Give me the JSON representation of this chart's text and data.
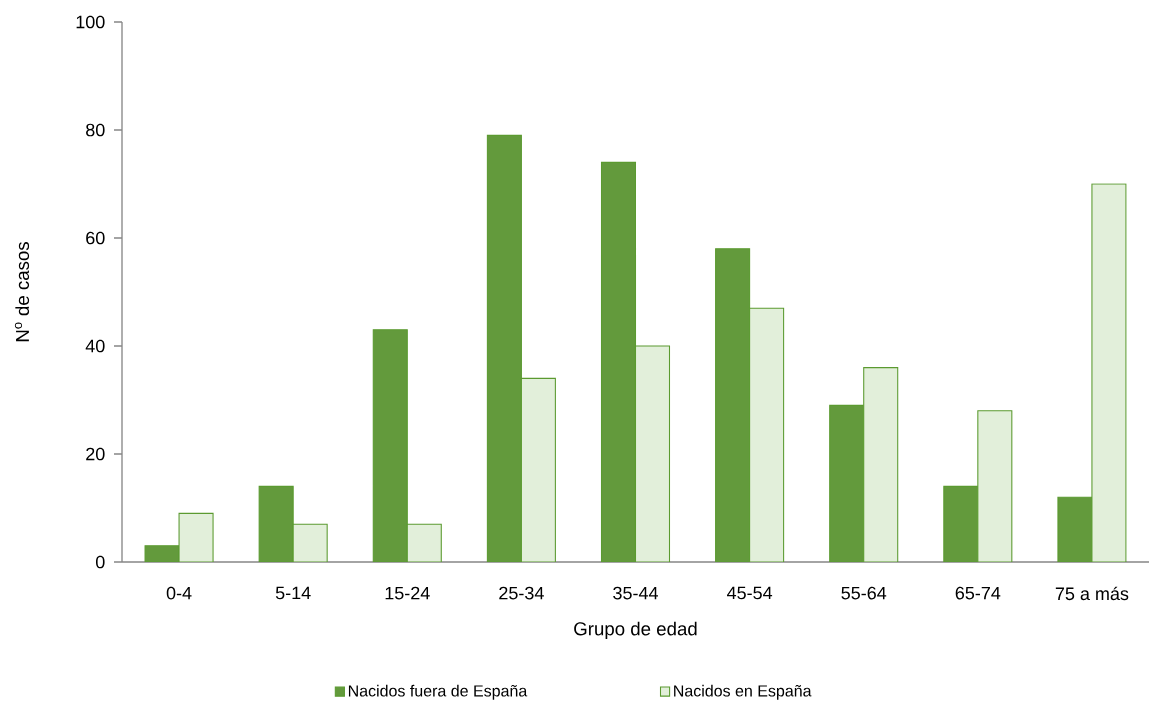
{
  "chart_data": {
    "type": "bar",
    "xlabel": "Grupo de edad",
    "ylabel": "N$^{o}$ de casos",
    "categories": [
      "0-4",
      "5-14",
      "15-24",
      "25-34",
      "35-44",
      "45-54",
      "55-64",
      "65-74",
      "75 a más"
    ],
    "series": [
      {
        "name": "Nacidos fuera de España",
        "color": "#639a3c",
        "values": [
          3,
          14,
          43,
          79,
          74,
          58,
          29,
          14,
          12
        ]
      },
      {
        "name": "Nacidos en España",
        "color": "#e2efda",
        "values": [
          9,
          7,
          7,
          34,
          40,
          47,
          36,
          28,
          70
        ]
      }
    ],
    "ylim": [
      0,
      100
    ],
    "yticks": [
      0,
      20,
      40,
      60,
      80,
      100
    ],
    "grid": false,
    "legend": "bottom"
  }
}
